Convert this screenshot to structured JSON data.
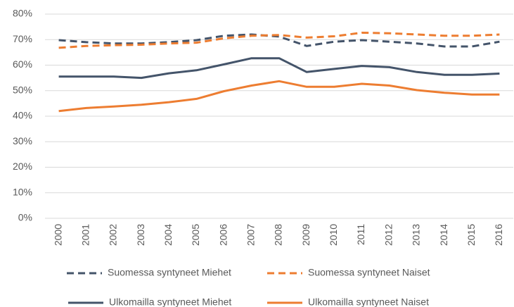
{
  "chart_data": {
    "type": "line",
    "categories": [
      "2000",
      "2001",
      "2002",
      "2003",
      "2004",
      "2005",
      "2006",
      "2007",
      "2008",
      "2009",
      "2010",
      "2011",
      "2012",
      "2013",
      "2014",
      "2015",
      "2016"
    ],
    "series": [
      {
        "name": "Suomessa syntyneet Miehet",
        "color": "#44546a",
        "dashed": true,
        "values": [
          69.8,
          69,
          68.5,
          68.5,
          69,
          69.8,
          71.5,
          72,
          71.2,
          67.5,
          69.2,
          69.8,
          69.2,
          68.5,
          67.3,
          67.3,
          69.2
        ]
      },
      {
        "name": "Suomessa syntyneet Naiset",
        "color": "#ed7d31",
        "dashed": true,
        "values": [
          66.8,
          67.5,
          67.8,
          68,
          68.5,
          68.8,
          70.5,
          71.5,
          71.8,
          70.8,
          71.3,
          72.7,
          72.5,
          72,
          71.5,
          71.5,
          72
        ]
      },
      {
        "name": "Ulkomailla syntyneet Miehet",
        "color": "#44546a",
        "dashed": false,
        "values": [
          55.5,
          55.5,
          55.5,
          55,
          56.8,
          58,
          60.3,
          62.7,
          62.7,
          57.3,
          58.5,
          59.7,
          59.2,
          57.3,
          56.2,
          56.2,
          56.7
        ]
      },
      {
        "name": "Ulkomailla syntyneet Naiset",
        "color": "#ed7d31",
        "dashed": false,
        "values": [
          42,
          43.2,
          43.8,
          44.5,
          45.5,
          46.8,
          49.8,
          52,
          53.7,
          51.5,
          51.5,
          52.7,
          52,
          50.2,
          49.2,
          48.5,
          48.5
        ]
      }
    ],
    "ylim": [
      0,
      80
    ],
    "yticks": [
      {
        "value": 0,
        "label": "0%"
      },
      {
        "value": 10,
        "label": "10%"
      },
      {
        "value": 20,
        "label": "20%"
      },
      {
        "value": 30,
        "label": "30%"
      },
      {
        "value": 40,
        "label": "40%"
      },
      {
        "value": 50,
        "label": "50%"
      },
      {
        "value": 60,
        "label": "60%"
      },
      {
        "value": 70,
        "label": "70%"
      },
      {
        "value": 80,
        "label": "80%"
      }
    ],
    "grid": true,
    "legend": "bottom"
  }
}
